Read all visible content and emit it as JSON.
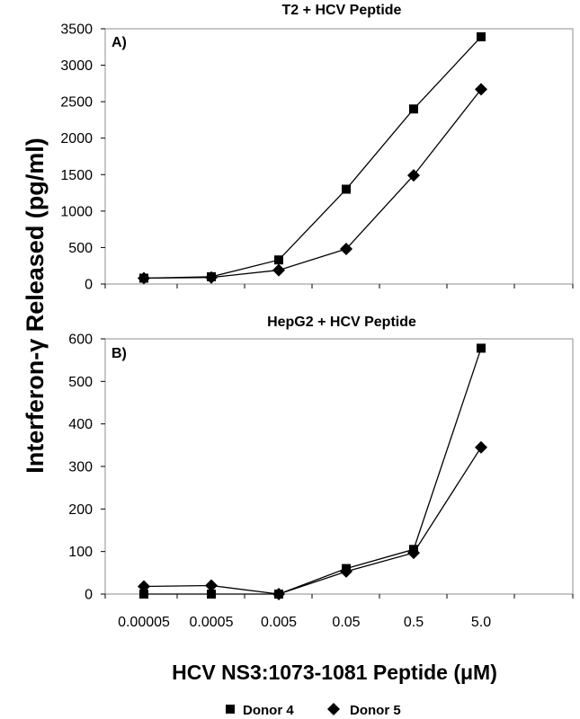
{
  "chart_data": [
    {
      "type": "line",
      "title": "T2 + HCV Peptide",
      "panel_label": "A)",
      "categories": [
        "0.00005",
        "0.0005",
        "0.005",
        "0.05",
        "0.5",
        "5.0"
      ],
      "ylim": [
        0,
        3500
      ],
      "yticks": [
        0,
        500,
        1000,
        1500,
        2000,
        2500,
        3000,
        3500
      ],
      "series": [
        {
          "name": "Donor 4",
          "marker": "square",
          "values": [
            80,
            100,
            330,
            1300,
            2400,
            3390
          ]
        },
        {
          "name": "Donor 5",
          "marker": "diamond",
          "values": [
            80,
            90,
            190,
            480,
            1490,
            2670
          ]
        }
      ]
    },
    {
      "type": "line",
      "title": "HepG2 + HCV Peptide",
      "panel_label": "B)",
      "categories": [
        "0.00005",
        "0.0005",
        "0.005",
        "0.05",
        "0.5",
        "5.0"
      ],
      "ylim": [
        0,
        600
      ],
      "yticks": [
        0,
        100,
        200,
        300,
        400,
        500,
        600
      ],
      "series": [
        {
          "name": "Donor 4",
          "marker": "square",
          "values": [
            0,
            0,
            0,
            60,
            105,
            578
          ]
        },
        {
          "name": "Donor 5",
          "marker": "diamond",
          "values": [
            18,
            20,
            0,
            53,
            97,
            345
          ]
        }
      ]
    }
  ],
  "shared": {
    "ylabel": "Interferon-γ Released (pg/ml)",
    "xlabel": "HCV NS3:1073-1081 Peptide (μM)",
    "legend": [
      {
        "name": "Donor 4",
        "marker": "square"
      },
      {
        "name": "Donor 5",
        "marker": "diamond"
      }
    ],
    "legend_position": "bottom-center",
    "grid": false
  }
}
